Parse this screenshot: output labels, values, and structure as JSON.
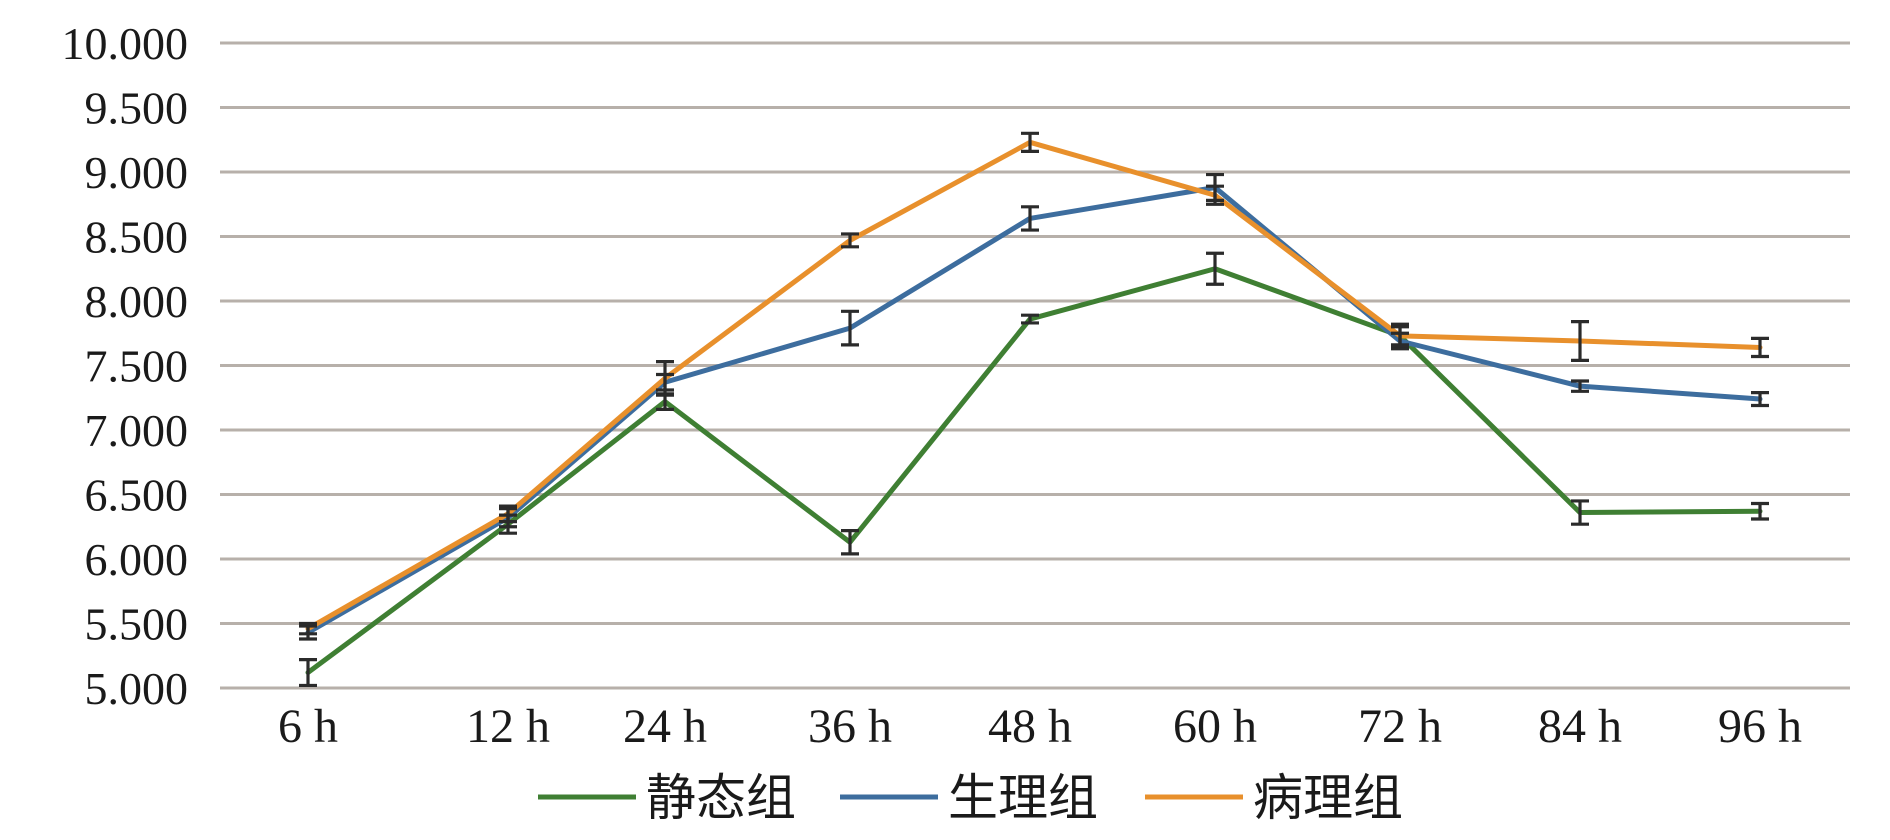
{
  "chart_data": {
    "type": "line",
    "title": "",
    "xlabel": "",
    "ylabel": "",
    "categories": [
      "6 h",
      "12 h",
      "24 h",
      "36 h",
      "48 h",
      "60 h",
      "72 h",
      "84 h",
      "96 h"
    ],
    "ylim": [
      5.0,
      10.0
    ],
    "yticks": [
      "5.000",
      "5.500",
      "6.000",
      "6.500",
      "7.000",
      "7.500",
      "8.000",
      "8.500",
      "9.000",
      "9.500",
      "10.000"
    ],
    "grid": true,
    "legend_position": "bottom",
    "series": [
      {
        "name": "静态组",
        "color": "#3f7f33",
        "values": [
          5.12,
          6.27,
          7.22,
          6.13,
          7.86,
          8.25,
          7.73,
          6.36,
          6.37
        ],
        "errors": [
          0.1,
          0.07,
          0.06,
          0.09,
          0.03,
          0.12,
          0.09,
          0.09,
          0.06
        ]
      },
      {
        "name": "生理组",
        "color": "#3d6d9e",
        "values": [
          5.43,
          6.32,
          7.37,
          7.79,
          8.64,
          8.88,
          7.69,
          7.34,
          7.24
        ],
        "errors": [
          0.05,
          0.07,
          0.06,
          0.13,
          0.09,
          0.1,
          0.06,
          0.04,
          0.05
        ]
      },
      {
        "name": "病理组",
        "color": "#e8902c",
        "values": [
          5.46,
          6.35,
          7.4,
          8.47,
          9.23,
          8.82,
          7.73,
          7.69,
          7.64
        ],
        "errors": [
          0.04,
          0.06,
          0.13,
          0.05,
          0.07,
          0.07,
          0.07,
          0.15,
          0.07
        ]
      }
    ]
  }
}
